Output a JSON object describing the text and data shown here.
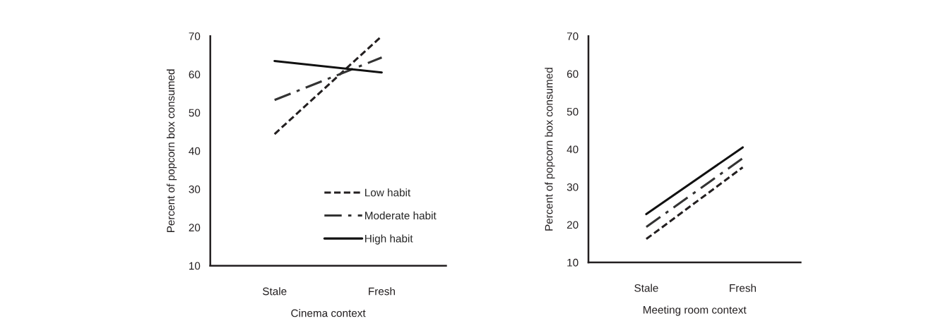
{
  "chart_data": [
    {
      "type": "line",
      "xlabel": "Cinema context",
      "ylabel": "Percent of popcorn box consumed",
      "categories": [
        "Stale",
        "Fresh"
      ],
      "ylim": [
        10,
        70
      ],
      "yticks": [
        10,
        20,
        30,
        40,
        50,
        60,
        70
      ],
      "grid": false,
      "legend": "bottom right",
      "series": [
        {
          "name": "Low habit",
          "color": "#231f20",
          "line_style": "dotted",
          "values": [
            44.4,
            70
          ]
        },
        {
          "name": "Moderate habit",
          "color": "#333333",
          "line_style": "dashdot",
          "values": [
            53.3,
            64.4
          ]
        },
        {
          "name": "High habit",
          "color": "#111111",
          "line_style": "solid",
          "values": [
            63.5,
            60.5
          ]
        }
      ]
    },
    {
      "type": "line",
      "xlabel": "Meeting room context",
      "ylabel": "Percent of popcorn box consumed",
      "categories": [
        "Stale",
        "Fresh"
      ],
      "ylim": [
        10,
        70
      ],
      "yticks": [
        10,
        20,
        30,
        40,
        50,
        60,
        70
      ],
      "grid": false,
      "legend": false,
      "series": [
        {
          "color": "#231f20",
          "line_style": "dotted",
          "values": [
            16.2,
            35.2
          ]
        },
        {
          "color": "#333333",
          "line_style": "dashdot",
          "values": [
            19.4,
            37.6
          ]
        },
        {
          "color": "#111111",
          "line_style": "solid",
          "values": [
            22.8,
            40.5
          ]
        }
      ]
    }
  ]
}
